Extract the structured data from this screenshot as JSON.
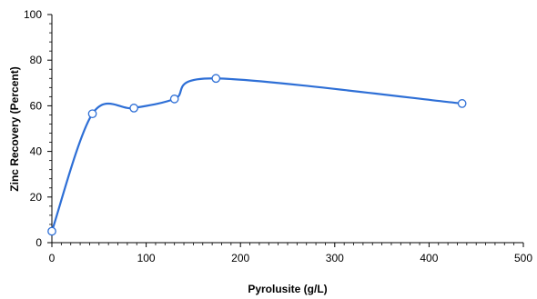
{
  "chart_data": {
    "type": "line",
    "xlabel": "Pyrolusite (g/L)",
    "ylabel": "Zinc Recovery (Percent)",
    "xlim": [
      0,
      500
    ],
    "ylim": [
      0,
      100
    ],
    "x_ticks": [
      0,
      100,
      200,
      300,
      400,
      500
    ],
    "y_ticks": [
      0,
      20,
      40,
      60,
      80,
      100
    ],
    "grid": false,
    "smooth": true,
    "series": [
      {
        "x": [
          0,
          43,
          87,
          130,
          174,
          435
        ],
        "y": [
          5,
          56.5,
          59,
          63,
          72,
          61
        ],
        "color": "#2e6fd6"
      }
    ]
  }
}
